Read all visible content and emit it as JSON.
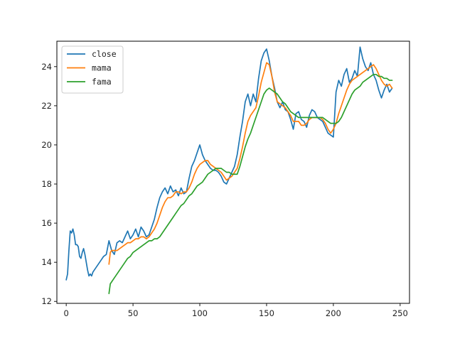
{
  "chart_data": {
    "type": "line",
    "xlim": [
      -7,
      257
    ],
    "ylim": [
      11.9,
      25.3
    ],
    "xticks": [
      0,
      50,
      100,
      150,
      200,
      250
    ],
    "yticks": [
      12,
      14,
      16,
      18,
      20,
      22,
      24
    ],
    "grid": false,
    "legend_position": "top-left",
    "series": [
      {
        "name": "close",
        "color": "#1f77b4",
        "x": [
          0,
          1,
          2,
          3,
          4,
          5,
          6,
          7,
          8,
          9,
          10,
          11,
          12,
          13,
          14,
          15,
          16,
          17,
          18,
          19,
          20,
          22,
          24,
          26,
          28,
          30,
          32,
          34,
          36,
          38,
          40,
          42,
          44,
          46,
          48,
          50,
          52,
          54,
          56,
          58,
          60,
          62,
          64,
          66,
          68,
          70,
          72,
          74,
          76,
          78,
          80,
          82,
          84,
          86,
          88,
          90,
          92,
          94,
          96,
          98,
          100,
          102,
          104,
          106,
          108,
          110,
          112,
          114,
          116,
          118,
          120,
          122,
          124,
          126,
          128,
          130,
          132,
          134,
          136,
          138,
          140,
          142,
          144,
          146,
          148,
          150,
          152,
          154,
          156,
          158,
          160,
          162,
          164,
          166,
          168,
          170,
          172,
          174,
          176,
          178,
          180,
          182,
          184,
          186,
          188,
          190,
          192,
          194,
          196,
          198,
          200,
          202,
          204,
          206,
          208,
          210,
          212,
          214,
          216,
          218,
          220,
          222,
          224,
          226,
          228,
          230,
          232,
          234,
          236,
          238,
          240,
          242,
          244
        ],
        "y": [
          13.1,
          13.4,
          14.6,
          15.6,
          15.5,
          15.7,
          15.4,
          14.9,
          14.9,
          14.8,
          14.3,
          14.2,
          14.5,
          14.7,
          14.4,
          14.0,
          13.6,
          13.3,
          13.4,
          13.3,
          13.5,
          13.7,
          13.9,
          14.1,
          14.3,
          14.4,
          15.1,
          14.6,
          14.4,
          15.0,
          15.1,
          15.0,
          15.3,
          15.6,
          15.2,
          15.4,
          15.7,
          15.3,
          15.8,
          15.6,
          15.3,
          15.4,
          15.8,
          16.2,
          16.8,
          17.3,
          17.6,
          17.8,
          17.5,
          17.9,
          17.6,
          17.7,
          17.4,
          17.8,
          17.5,
          17.6,
          18.3,
          18.9,
          19.2,
          19.6,
          20.0,
          19.5,
          19.2,
          19.0,
          18.8,
          18.7,
          18.7,
          18.6,
          18.4,
          18.1,
          18.0,
          18.3,
          18.6,
          18.9,
          19.5,
          20.4,
          21.2,
          22.2,
          22.6,
          22.0,
          22.6,
          22.2,
          23.4,
          24.3,
          24.7,
          24.9,
          24.3,
          23.5,
          22.9,
          22.2,
          21.9,
          22.2,
          21.8,
          21.7,
          21.3,
          20.8,
          21.6,
          21.7,
          21.3,
          21.2,
          20.9,
          21.5,
          21.8,
          21.7,
          21.4,
          21.3,
          21.2,
          20.9,
          20.6,
          20.5,
          20.4,
          22.7,
          23.3,
          23.0,
          23.6,
          23.9,
          23.2,
          23.4,
          23.8,
          23.5,
          25.0,
          24.4,
          24.0,
          23.8,
          24.2,
          23.6,
          23.3,
          22.8,
          22.4,
          22.8,
          23.1,
          22.7,
          22.9
        ]
      },
      {
        "name": "mama",
        "color": "#ff7f0e",
        "x": [
          32,
          33,
          34,
          36,
          38,
          40,
          42,
          44,
          46,
          48,
          50,
          52,
          54,
          56,
          58,
          60,
          62,
          64,
          66,
          68,
          70,
          72,
          74,
          76,
          78,
          80,
          82,
          84,
          86,
          88,
          90,
          92,
          94,
          96,
          98,
          100,
          102,
          104,
          106,
          108,
          110,
          112,
          114,
          116,
          118,
          120,
          122,
          124,
          126,
          128,
          130,
          132,
          134,
          136,
          138,
          140,
          142,
          144,
          146,
          148,
          150,
          152,
          154,
          156,
          158,
          160,
          162,
          164,
          166,
          168,
          170,
          172,
          174,
          176,
          178,
          180,
          182,
          184,
          186,
          188,
          190,
          192,
          194,
          196,
          198,
          200,
          202,
          204,
          206,
          208,
          210,
          212,
          214,
          216,
          218,
          220,
          222,
          224,
          226,
          228,
          230,
          232,
          234,
          236,
          238,
          240,
          242,
          244
        ],
        "y": [
          13.9,
          14.5,
          14.6,
          14.6,
          14.6,
          14.7,
          14.8,
          14.9,
          15.0,
          15.0,
          15.1,
          15.2,
          15.2,
          15.3,
          15.3,
          15.2,
          15.3,
          15.5,
          15.7,
          16.0,
          16.4,
          16.8,
          17.1,
          17.3,
          17.3,
          17.4,
          17.6,
          17.6,
          17.5,
          17.6,
          17.6,
          17.8,
          18.1,
          18.5,
          18.8,
          19.0,
          19.1,
          19.2,
          19.2,
          19.0,
          18.9,
          18.8,
          18.7,
          18.6,
          18.4,
          18.2,
          18.3,
          18.4,
          18.6,
          18.8,
          19.3,
          19.9,
          20.6,
          21.2,
          21.5,
          21.7,
          21.9,
          22.5,
          23.2,
          23.7,
          24.2,
          24.1,
          23.5,
          22.7,
          22.2,
          22.1,
          22.0,
          21.9,
          21.7,
          21.5,
          21.2,
          21.2,
          21.2,
          21.0,
          21.0,
          21.1,
          21.3,
          21.4,
          21.4,
          21.4,
          21.4,
          21.3,
          21.1,
          20.8,
          20.6,
          20.8,
          21.1,
          21.6,
          22.0,
          22.4,
          22.8,
          23.1,
          23.3,
          23.4,
          23.5,
          23.6,
          23.7,
          23.8,
          23.9,
          24.0,
          24.1,
          23.9,
          23.6,
          23.3,
          23.1,
          23.0,
          23.1,
          22.9
        ]
      },
      {
        "name": "fama",
        "color": "#2ca02c",
        "x": [
          32,
          33,
          34,
          36,
          38,
          40,
          42,
          44,
          46,
          48,
          50,
          52,
          54,
          56,
          58,
          60,
          62,
          64,
          66,
          68,
          70,
          72,
          74,
          76,
          78,
          80,
          82,
          84,
          86,
          88,
          90,
          92,
          94,
          96,
          98,
          100,
          102,
          104,
          106,
          108,
          110,
          112,
          114,
          116,
          118,
          120,
          122,
          124,
          126,
          128,
          130,
          132,
          134,
          136,
          138,
          140,
          142,
          144,
          146,
          148,
          150,
          152,
          154,
          156,
          158,
          160,
          162,
          164,
          166,
          168,
          170,
          172,
          174,
          176,
          178,
          180,
          182,
          184,
          186,
          188,
          190,
          192,
          194,
          196,
          198,
          200,
          202,
          204,
          206,
          208,
          210,
          212,
          214,
          216,
          218,
          220,
          222,
          224,
          226,
          228,
          230,
          232,
          234,
          236,
          238,
          240,
          242,
          244
        ],
        "y": [
          12.4,
          12.9,
          13.0,
          13.2,
          13.4,
          13.6,
          13.8,
          14.0,
          14.2,
          14.3,
          14.5,
          14.6,
          14.7,
          14.8,
          14.9,
          15.0,
          15.1,
          15.1,
          15.2,
          15.2,
          15.3,
          15.5,
          15.7,
          15.9,
          16.1,
          16.3,
          16.5,
          16.7,
          16.9,
          17.0,
          17.2,
          17.4,
          17.5,
          17.7,
          17.9,
          18.0,
          18.1,
          18.3,
          18.5,
          18.6,
          18.7,
          18.8,
          18.8,
          18.8,
          18.7,
          18.6,
          18.6,
          18.5,
          18.5,
          18.5,
          18.9,
          19.4,
          19.9,
          20.3,
          20.6,
          21.0,
          21.4,
          21.8,
          22.2,
          22.6,
          22.8,
          22.9,
          22.8,
          22.7,
          22.6,
          22.4,
          22.2,
          22.1,
          21.9,
          21.7,
          21.6,
          21.5,
          21.4,
          21.4,
          21.4,
          21.4,
          21.4,
          21.4,
          21.4,
          21.4,
          21.4,
          21.4,
          21.3,
          21.2,
          21.1,
          21.1,
          21.1,
          21.2,
          21.4,
          21.7,
          22.0,
          22.3,
          22.6,
          22.8,
          22.9,
          23.0,
          23.2,
          23.3,
          23.4,
          23.5,
          23.6,
          23.6,
          23.5,
          23.5,
          23.4,
          23.4,
          23.3,
          23.3
        ]
      }
    ]
  }
}
